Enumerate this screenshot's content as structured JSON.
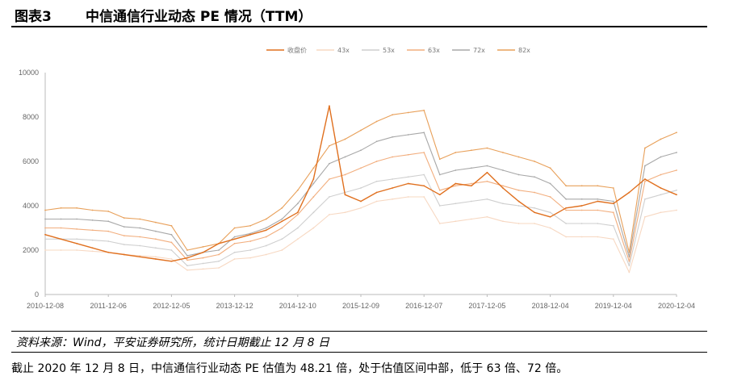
{
  "figure": {
    "number": "图表3",
    "title": "中信通信行业动态 PE 情况（TTM）",
    "source": "资料来源：Wind，平安证券研究所，统计日期截止 12 月 8 日",
    "body_text": "截止 2020 年 12 月 8 日，中信通信行业动态 PE 估值为 48.21 倍，处于估值区间中部，低于 63 倍、72 倍。"
  },
  "colors": {
    "close": "#E0701F",
    "43x": "#F7D8C2",
    "53x": "#CFCFCF",
    "63x": "#F2AE7E",
    "72x": "#A8A8A8",
    "82x": "#E8A05A"
  },
  "chart_data": {
    "type": "line",
    "title": "",
    "xlabel": "",
    "ylabel": "",
    "ylim": [
      0,
      10000
    ],
    "yticks": [
      "0",
      "2000",
      "4000",
      "6000",
      "8000",
      "10000"
    ],
    "xticks": [
      "2010-12-08",
      "2011-12-06",
      "2012-12-05",
      "2013-12-12",
      "2014-12-10",
      "2015-12-09",
      "2016-12-07",
      "2017-12-05",
      "2018-12-04",
      "2019-12-04",
      "2020-12-04"
    ],
    "grid": false,
    "legend_position": "top",
    "x": [
      "2010-12",
      "2011-03",
      "2011-06",
      "2011-09",
      "2011-12",
      "2012-03",
      "2012-06",
      "2012-09",
      "2012-12",
      "2013-03",
      "2013-06",
      "2013-09",
      "2013-12",
      "2014-03",
      "2014-06",
      "2014-09",
      "2014-12",
      "2015-03",
      "2015-06",
      "2015-09",
      "2015-12",
      "2016-03",
      "2016-06",
      "2016-09",
      "2016-12",
      "2017-03",
      "2017-06",
      "2017-09",
      "2017-12",
      "2018-03",
      "2018-06",
      "2018-09",
      "2018-12",
      "2019-03",
      "2019-06",
      "2019-09",
      "2019-12",
      "2020-03",
      "2020-06",
      "2020-09",
      "2020-12"
    ],
    "series": [
      {
        "name": "收盘价",
        "key": "close",
        "values": [
          2700,
          2500,
          2300,
          2100,
          1900,
          1800,
          1700,
          1600,
          1500,
          1650,
          1900,
          2300,
          2500,
          2700,
          2900,
          3300,
          3700,
          5200,
          8500,
          4500,
          4200,
          4600,
          4800,
          5000,
          4900,
          4500,
          5000,
          4900,
          5500,
          4800,
          4200,
          3700,
          3500,
          3900,
          4000,
          4200,
          4100,
          4600,
          5200,
          4800,
          4500
        ]
      },
      {
        "name": "43x",
        "key": "43x",
        "values": [
          2000,
          2000,
          2000,
          1950,
          1900,
          1800,
          1750,
          1700,
          1600,
          1100,
          1150,
          1200,
          1600,
          1650,
          1800,
          2000,
          2500,
          3000,
          3600,
          3700,
          3900,
          4200,
          4300,
          4400,
          4400,
          3200,
          3300,
          3400,
          3500,
          3300,
          3200,
          3200,
          3000,
          2600,
          2600,
          2600,
          2500,
          1000,
          3500,
          3700,
          3800
        ]
      },
      {
        "name": "53x",
        "key": "53x",
        "values": [
          2500,
          2500,
          2500,
          2450,
          2400,
          2250,
          2200,
          2100,
          2000,
          1300,
          1400,
          1500,
          1900,
          2000,
          2200,
          2500,
          3000,
          3700,
          4400,
          4600,
          4800,
          5100,
          5200,
          5300,
          5400,
          4000,
          4100,
          4200,
          4300,
          4100,
          4000,
          3900,
          3700,
          3200,
          3200,
          3200,
          3100,
          1300,
          4300,
          4500,
          4700
        ]
      },
      {
        "name": "63x",
        "key": "63x",
        "values": [
          3000,
          3000,
          2950,
          2900,
          2850,
          2650,
          2600,
          2500,
          2350,
          1550,
          1650,
          1800,
          2300,
          2400,
          2600,
          3000,
          3600,
          4400,
          5200,
          5400,
          5700,
          6000,
          6200,
          6300,
          6400,
          4700,
          4900,
          5000,
          5100,
          4900,
          4700,
          4600,
          4400,
          3800,
          3800,
          3800,
          3700,
          1500,
          5100,
          5400,
          5600
        ]
      },
      {
        "name": "72x",
        "key": "72x",
        "values": [
          3400,
          3400,
          3400,
          3350,
          3300,
          3050,
          3000,
          2850,
          2700,
          1750,
          1900,
          2000,
          2600,
          2750,
          3000,
          3400,
          4100,
          5000,
          5900,
          6200,
          6500,
          6900,
          7100,
          7200,
          7300,
          5400,
          5600,
          5700,
          5800,
          5600,
          5400,
          5300,
          5000,
          4300,
          4300,
          4300,
          4200,
          1700,
          5800,
          6200,
          6400
        ]
      },
      {
        "name": "82x",
        "key": "82x",
        "values": [
          3800,
          3900,
          3900,
          3800,
          3750,
          3450,
          3400,
          3250,
          3100,
          2000,
          2150,
          2300,
          3000,
          3100,
          3400,
          3900,
          4700,
          5700,
          6700,
          7000,
          7400,
          7800,
          8100,
          8200,
          8300,
          6100,
          6400,
          6500,
          6600,
          6400,
          6200,
          6000,
          5700,
          4900,
          4900,
          4900,
          4800,
          1900,
          6600,
          7000,
          7300
        ]
      }
    ]
  }
}
